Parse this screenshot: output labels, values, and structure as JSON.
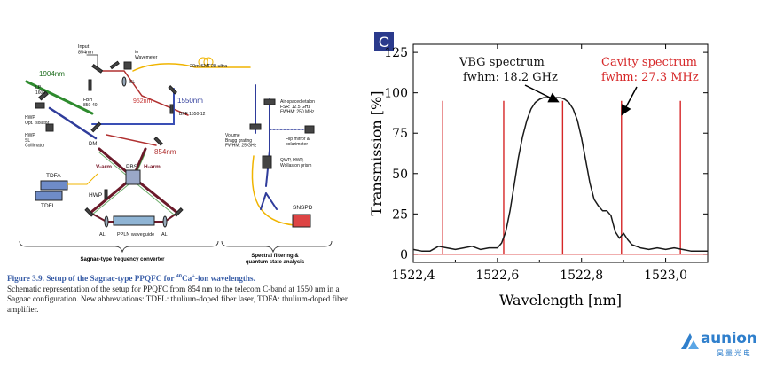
{
  "diagram": {
    "labels": {
      "input": "Input\n854nm",
      "to_wavemeter": "to\nWavemeter",
      "smf_label": "20m SMF28 ultra",
      "lp": "LP\n1600",
      "wl_1904": "1904nm",
      "fbh": "FBH\n850-40",
      "sl_top": "SL",
      "wl_952": "952nm",
      "wl_1550": "1550nm",
      "bpf": "BPF 1550-12",
      "etalon": "Air-spaced etalon\nFSR: 12.5 GHz\nFWHM: 250 MHz",
      "hwp_iso": "HWP\nOpt. Isolator",
      "hwp_sl": "HWP\nSL\nCollimator",
      "dm": "DM",
      "wl_854": "854nm",
      "vbg": "Volume\nBragg grating\nFWHM: 25 GHz",
      "flip": "Flip mirror &\npolarimeter",
      "v_arm": "V-arm",
      "h_arm": "H-arm",
      "qwp": "QWP, HWP,\nWollaston prism",
      "tdfa": "TDFA",
      "pbs": "PBS",
      "tdfl": "TDFL",
      "hwp_loop": "HWP",
      "snspd": "SNSPD",
      "al_left": "AL",
      "ppln": "PPLN waveguide",
      "al_right": "AL",
      "section_converter": "Sagnac-type frequency converter",
      "section_spectral": "Spectral filtering &\nquantum state analysis"
    },
    "caption": {
      "title_pre": "Figure 3.9.  Setup of the Sagnac-type PPQFC for ",
      "title_sup": "40",
      "title_post": "Ca",
      "title_sup2": "+",
      "title_end": "-ion wavelengths.",
      "body": "Schematic representation of the setup for PPQFC from 854 nm to the telecom C-band at 1550 nm in a Sagnac configuration.  New abbreviations: TDFL: thulium-doped fiber laser, TDFA: thulium-doped fiber amplifier."
    }
  },
  "chart_data": {
    "type": "line",
    "panel_label": "C",
    "xlabel": "Wavelength [nm]",
    "ylabel": "Transmission [%]",
    "xlim": [
      1522.4,
      1523.1
    ],
    "ylim": [
      -5,
      130
    ],
    "xticks": [
      1522.4,
      1522.6,
      1522.8,
      1523.0
    ],
    "xtick_labels": [
      "1522,4",
      "1522,6",
      "1522,8",
      "1523,0"
    ],
    "yticks": [
      0,
      25,
      50,
      75,
      100,
      125
    ],
    "grid": false,
    "colors": {
      "vbg": "#1a1a1a",
      "cavity": "#d62728",
      "annotation_vbg": "#111111",
      "annotation_cavity": "#d62728"
    },
    "series": [
      {
        "id": "vbg",
        "x": [
          1522.4,
          1522.42,
          1522.44,
          1522.46,
          1522.48,
          1522.5,
          1522.52,
          1522.54,
          1522.56,
          1522.58,
          1522.6,
          1522.61,
          1522.62,
          1522.63,
          1522.64,
          1522.65,
          1522.66,
          1522.67,
          1522.68,
          1522.69,
          1522.7,
          1522.71,
          1522.72,
          1522.73,
          1522.74,
          1522.75,
          1522.76,
          1522.77,
          1522.78,
          1522.79,
          1522.8,
          1522.81,
          1522.82,
          1522.83,
          1522.84,
          1522.85,
          1522.86,
          1522.87,
          1522.88,
          1522.89,
          1522.9,
          1522.91,
          1522.92,
          1522.94,
          1522.96,
          1522.98,
          1523.0,
          1523.02,
          1523.04,
          1523.06,
          1523.08,
          1523.1
        ],
        "y": [
          3,
          2,
          2,
          5,
          4,
          3,
          4,
          5,
          3,
          4,
          4,
          7,
          14,
          27,
          43,
          60,
          73,
          83,
          90,
          94,
          96,
          97,
          97,
          97,
          97,
          97,
          96,
          94,
          90,
          83,
          72,
          58,
          44,
          34,
          30,
          27,
          27,
          24,
          14,
          10,
          13,
          9,
          6,
          4,
          3,
          4,
          3,
          4,
          3,
          2,
          2,
          2
        ]
      },
      {
        "id": "cavity",
        "peaks": [
          1522.47,
          1522.615,
          1522.755,
          1522.895,
          1523.035
        ],
        "peak_height": 95,
        "baseline": 0,
        "linewidth_nm": 0.003
      }
    ],
    "annotations": [
      {
        "series": "vbg",
        "line1": "VBG spectrum",
        "line2": "fwhm: 18.2 GHz"
      },
      {
        "series": "cavity",
        "line1": "Cavity spectrum",
        "line2": "fwhm: 27.3 MHz"
      }
    ]
  },
  "logo": {
    "name": "aunion",
    "sub": "昊量光电"
  }
}
